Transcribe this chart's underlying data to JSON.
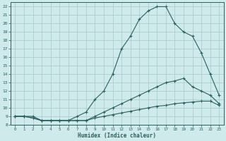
{
  "xlabel": "Humidex (Indice chaleur)",
  "bg_color": "#ceeaea",
  "grid_color": "#a8c8c8",
  "line_color": "#2a6060",
  "xlim": [
    -0.5,
    23.5
  ],
  "ylim": [
    8,
    22.5
  ],
  "yticks": [
    8,
    9,
    10,
    11,
    12,
    13,
    14,
    15,
    16,
    17,
    18,
    19,
    20,
    21,
    22
  ],
  "xticks": [
    0,
    1,
    2,
    3,
    4,
    5,
    6,
    7,
    8,
    9,
    10,
    11,
    12,
    13,
    14,
    15,
    16,
    17,
    18,
    19,
    20,
    21,
    22,
    23
  ],
  "line1_x": [
    0,
    1,
    2,
    3,
    4,
    5,
    6,
    7,
    8,
    9,
    10,
    11,
    12,
    13,
    14,
    15,
    16,
    17,
    18,
    19,
    20,
    21,
    22,
    23
  ],
  "line1_y": [
    9,
    9,
    9,
    8.5,
    8.5,
    8.5,
    8.5,
    9,
    9.5,
    11,
    12,
    14,
    17,
    18.5,
    20.5,
    21.5,
    22,
    22,
    20,
    19,
    18.5,
    16.5,
    14,
    11.5
  ],
  "line2_x": [
    0,
    1,
    2,
    3,
    4,
    5,
    6,
    7,
    8,
    9,
    10,
    11,
    12,
    13,
    14,
    15,
    16,
    17,
    18,
    19,
    20,
    21,
    22,
    23
  ],
  "line2_y": [
    9,
    9,
    8.8,
    8.5,
    8.5,
    8.5,
    8.5,
    8.5,
    8.5,
    9,
    9.5,
    10,
    10.5,
    11,
    11.5,
    12,
    12.5,
    13,
    13.2,
    13.5,
    12.5,
    12,
    11.5,
    10.5
  ],
  "line3_x": [
    0,
    1,
    2,
    3,
    4,
    5,
    6,
    7,
    8,
    9,
    10,
    11,
    12,
    13,
    14,
    15,
    16,
    17,
    18,
    19,
    20,
    21,
    22,
    23
  ],
  "line3_y": [
    9,
    9,
    8.8,
    8.5,
    8.5,
    8.5,
    8.5,
    8.5,
    8.5,
    8.8,
    9,
    9.2,
    9.4,
    9.6,
    9.8,
    10,
    10.2,
    10.3,
    10.5,
    10.6,
    10.7,
    10.8,
    10.8,
    10.3
  ]
}
